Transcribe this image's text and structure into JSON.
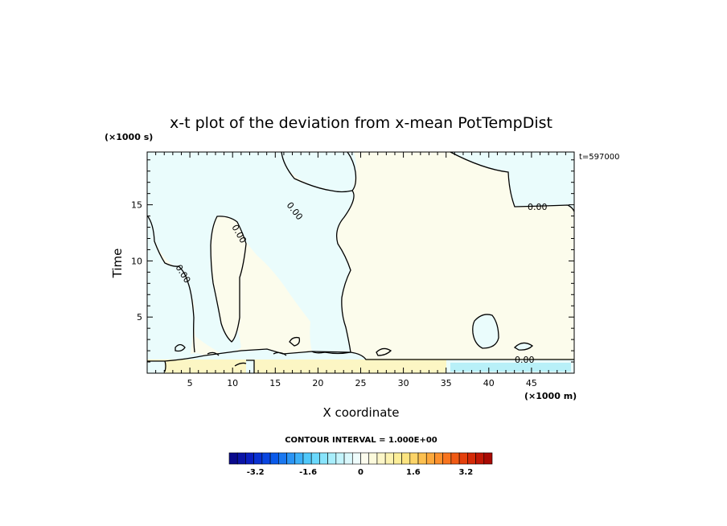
{
  "chart_data": {
    "type": "heatmap",
    "title": "x-t plot of the deviation from x-mean PotTempDist",
    "xlabel": "X coordinate",
    "ylabel": "Time",
    "x_unit": "(×1000 m)",
    "y_unit": "(×1000 s)",
    "time_stamp": "t=597000",
    "xlim": [
      0,
      50
    ],
    "ylim": [
      0,
      19.7
    ],
    "x_ticks": [
      "5",
      "10",
      "15",
      "20",
      "25",
      "30",
      "35",
      "40",
      "45"
    ],
    "y_ticks": [
      "5",
      "10",
      "15"
    ],
    "contour_label": "0.00",
    "contour_interval_text": "CONTOUR INTERVAL = 1.000E+00",
    "colorbar": {
      "range": [
        -4,
        4
      ],
      "tick_labels": [
        "-3.2",
        "-1.6",
        "0",
        "1.6",
        "3.2"
      ],
      "colors": [
        "#0a0a8c",
        "#0a14a6",
        "#0a1ec0",
        "#0a32d2",
        "#0a46e0",
        "#0a5aea",
        "#1a78f0",
        "#2a94f4",
        "#3cb0f8",
        "#50c8fa",
        "#6ad8fc",
        "#88e4fc",
        "#a8eefc",
        "#c4f4fc",
        "#daf8fc",
        "#eefcfc",
        "#fcfcee",
        "#fcfadc",
        "#fcf6c8",
        "#fcf2b0",
        "#fcee98",
        "#fce480",
        "#fcd468",
        "#fcc050",
        "#fca83c",
        "#fc902c",
        "#f8741e",
        "#f05a14",
        "#e4400c",
        "#d42a08",
        "#c01806",
        "#a80a04"
      ]
    },
    "regions": {
      "negative_color": "#eafcfc",
      "positive_color": "#fcfcec",
      "strong_positive_color": "#fcf6c4",
      "strong_negative_color": "#b8f0f8"
    }
  }
}
